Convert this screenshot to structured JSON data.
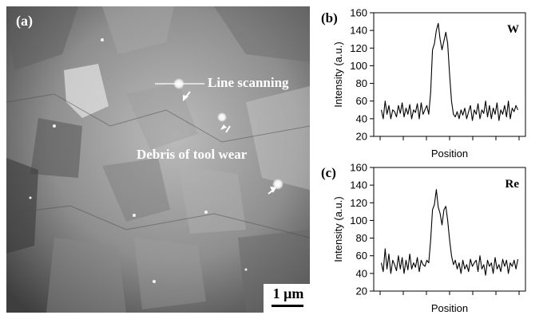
{
  "micrograph": {
    "panel_label": "(a)",
    "line_scan_label": "Line scanning",
    "debris_label": "Debris of tool wear",
    "scale_bar_label": "1 μm"
  },
  "chart_data": [
    {
      "type": "line",
      "panel_label": "(b)",
      "element_label": "W",
      "xlabel": "Position",
      "ylabel": "Intensity (a.u.)",
      "ylim": [
        20,
        160
      ],
      "yticks": [
        20,
        40,
        60,
        80,
        100,
        120,
        140,
        160
      ],
      "xlim": [
        0,
        100
      ],
      "grid": false,
      "series": [
        {
          "values": [
            50,
            40,
            60,
            45,
            55,
            40,
            50,
            48,
            42,
            55,
            46,
            58,
            42,
            52,
            45,
            56,
            40,
            50,
            47,
            57,
            40,
            58,
            45,
            50,
            55,
            45,
            70,
            118,
            125,
            140,
            148,
            130,
            118,
            128,
            138,
            125,
            90,
            60,
            45,
            42,
            48,
            40,
            50,
            44,
            52,
            40,
            48,
            55,
            38,
            50,
            45,
            57,
            40,
            50,
            46,
            60,
            42,
            55,
            40,
            52,
            45,
            58,
            38,
            50,
            45,
            55,
            42,
            60,
            40,
            52,
            48,
            55,
            50
          ]
        }
      ]
    },
    {
      "type": "line",
      "panel_label": "(c)",
      "element_label": "Re",
      "xlabel": "Position",
      "ylabel": "Intensity (a.u.)",
      "ylim": [
        20,
        160
      ],
      "yticks": [
        20,
        40,
        60,
        80,
        100,
        120,
        140,
        160
      ],
      "xlim": [
        0,
        100
      ],
      "grid": false,
      "series": [
        {
          "values": [
            52,
            42,
            68,
            45,
            62,
            40,
            55,
            50,
            43,
            60,
            45,
            58,
            40,
            55,
            44,
            62,
            45,
            52,
            47,
            58,
            42,
            55,
            50,
            48,
            55,
            52,
            78,
            112,
            118,
            135,
            115,
            108,
            95,
            112,
            116,
            100,
            78,
            60,
            50,
            55,
            45,
            52,
            40,
            55,
            45,
            50,
            42,
            56,
            48,
            52,
            55,
            42,
            60,
            45,
            50,
            38,
            55,
            48,
            52,
            40,
            58,
            45,
            50,
            42,
            56,
            48,
            55,
            40,
            52,
            48,
            55,
            45,
            56
          ]
        }
      ]
    }
  ]
}
